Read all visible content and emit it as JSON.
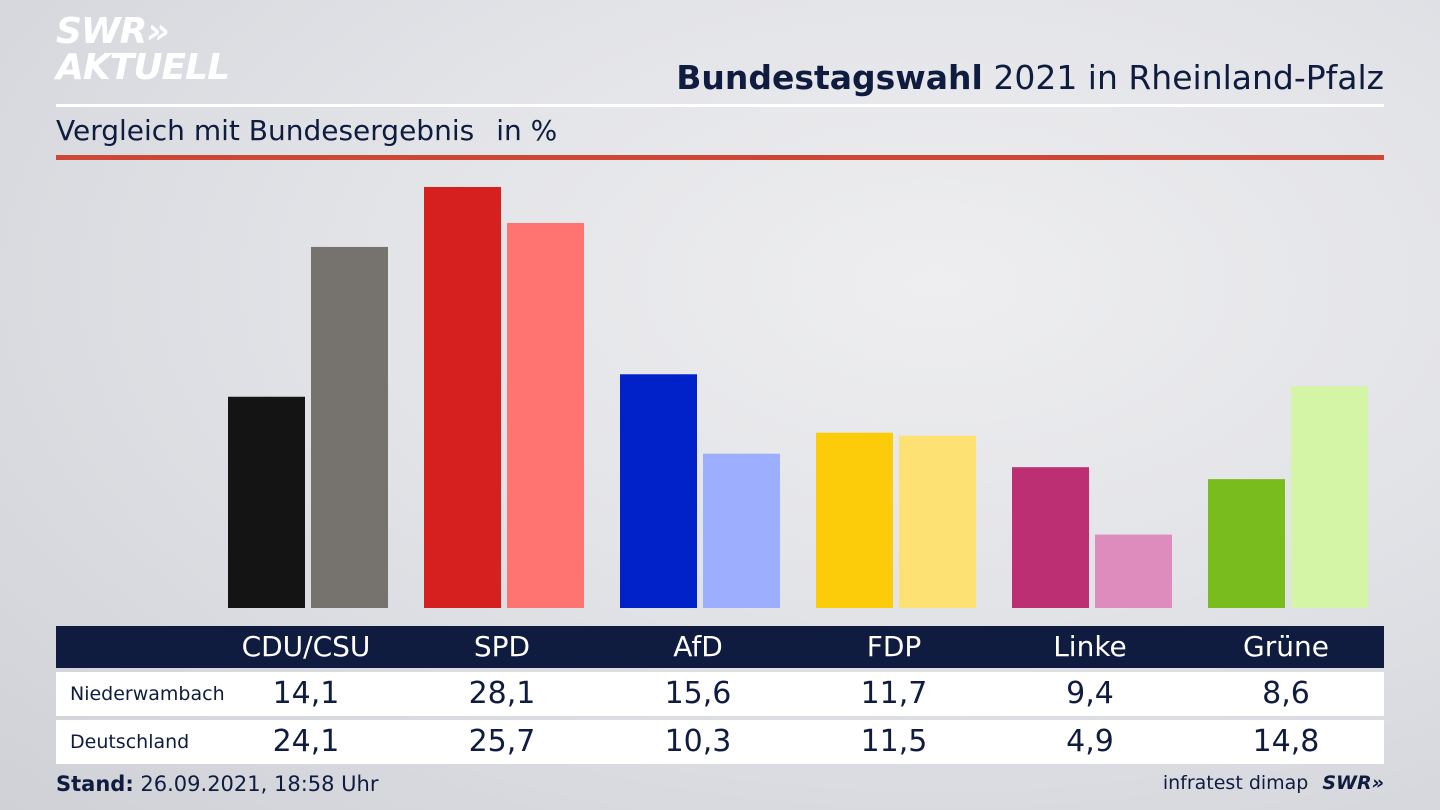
{
  "logo": {
    "line1": "SWR»",
    "line2": "AKTUELL"
  },
  "header": {
    "title_bold": "Bundestagswahl",
    "title_rest": " 2021 in Rheinland-Pfalz",
    "subtitle": "Vergleich mit Bundesergebnis",
    "unit": "in %"
  },
  "colors": {
    "navy": "#0f1c3f",
    "accent_rule": "#cf4734"
  },
  "chart_data": {
    "type": "bar",
    "categories": [
      "CDU/CSU",
      "SPD",
      "AfD",
      "FDP",
      "Linke",
      "Grüne"
    ],
    "series": [
      {
        "name": "Niederwambach",
        "values": [
          14.1,
          28.1,
          15.6,
          11.7,
          9.4,
          8.6
        ],
        "colors": [
          "#141414",
          "#d61f1f",
          "#0022c8",
          "#fccb0a",
          "#bd2f73",
          "#78bc1e"
        ]
      },
      {
        "name": "Deutschland",
        "values": [
          24.1,
          25.7,
          10.3,
          11.5,
          4.9,
          14.8
        ],
        "colors": [
          "#76736f",
          "#ff7470",
          "#9daeff",
          "#fde172",
          "#de8bbe",
          "#d3f5a5"
        ]
      }
    ],
    "ylim": [
      0,
      28.1
    ],
    "grid": false,
    "title": "Bundestagswahl 2021 in Rheinland-Pfalz",
    "ylabel": "",
    "xlabel": ""
  },
  "table": {
    "headers": [
      "CDU/CSU",
      "SPD",
      "AfD",
      "FDP",
      "Linke",
      "Grüne"
    ],
    "rows": [
      {
        "label": "Niederwambach",
        "values": [
          "14,1",
          "28,1",
          "15,6",
          "11,7",
          "9,4",
          "8,6"
        ]
      },
      {
        "label": "Deutschland",
        "values": [
          "24,1",
          "25,7",
          "10,3",
          "11,5",
          "4,9",
          "14,8"
        ]
      }
    ]
  },
  "footer": {
    "stand_label": "Stand:",
    "stand_value": " 26.09.2021, 18:58 Uhr",
    "source": "infratest dimap",
    "brand": "SWR»"
  }
}
